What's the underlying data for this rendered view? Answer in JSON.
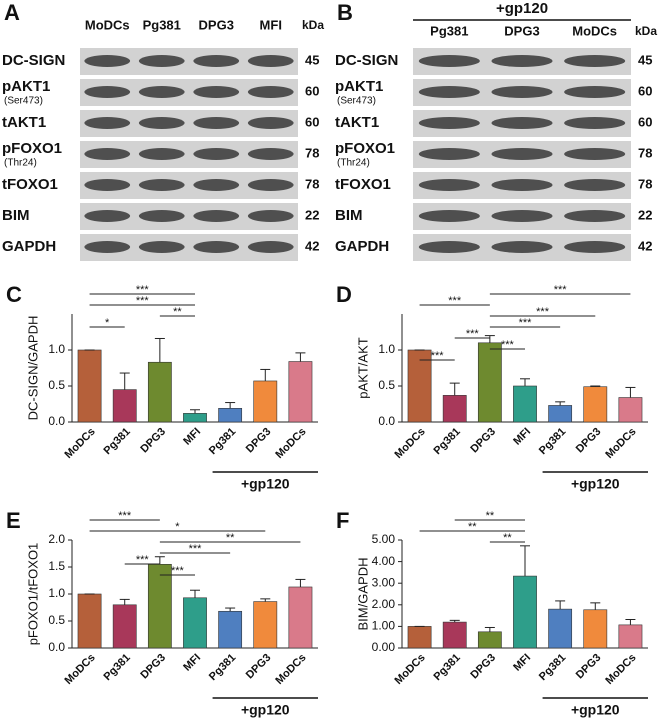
{
  "blots": [
    {
      "panel": "A",
      "lanes": [
        "MoDCs",
        "Pg381",
        "DPG3",
        "MFI"
      ],
      "unit": "kDa",
      "rows": [
        {
          "label": "DC-SIGN",
          "kda": 45
        },
        {
          "label": "pAKT1",
          "site": "(Ser473)",
          "kda": 60
        },
        {
          "label": "tAKT1",
          "kda": 60
        },
        {
          "label": "pFOXO1",
          "site": "(Thr24)",
          "kda": 78
        },
        {
          "label": "tFOXO1",
          "kda": 78
        },
        {
          "label": "BIM",
          "kda": 22
        },
        {
          "label": "GAPDH",
          "kda": 42
        }
      ]
    },
    {
      "panel": "B",
      "treatment": "+gp120",
      "lanes": [
        "Pg381",
        "DPG3",
        "MoDCs"
      ],
      "unit": "kDa",
      "rows": [
        {
          "label": "DC-SIGN",
          "kda": 45
        },
        {
          "label": "pAKT1",
          "site": "(Ser473)",
          "kda": 60
        },
        {
          "label": "tAKT1",
          "kda": 60
        },
        {
          "label": "pFOXO1",
          "site": "(Thr24)",
          "kda": 78
        },
        {
          "label": "tFOXO1",
          "kda": 78
        },
        {
          "label": "BIM",
          "kda": 22
        },
        {
          "label": "GAPDH",
          "kda": 42
        }
      ]
    }
  ],
  "chart_data": [
    {
      "type": "bar",
      "panel": "C",
      "y_label": "DC-SIGN/GAPDH",
      "categories": [
        "MoDCs",
        "Pg381",
        "DPG3",
        "MFI",
        "Pg381",
        "DPG3",
        "MoDCs"
      ],
      "values": [
        1.0,
        0.45,
        0.83,
        0.12,
        0.19,
        0.57,
        0.84
      ],
      "errors": [
        0,
        0.23,
        0.33,
        0.05,
        0.08,
        0.16,
        0.12
      ],
      "colors": [
        "#b5603a",
        "#a8385a",
        "#6e8a2f",
        "#2e9e8a",
        "#4f7fc0",
        "#f08a3c",
        "#d97a8a"
      ],
      "ylim": [
        0,
        1.5
      ],
      "yticks": [
        {
          "value": 0,
          "label": "0.0"
        },
        {
          "value": 0.5,
          "label": "0.5"
        },
        {
          "value": 1,
          "label": "1.0"
        }
      ],
      "significance": [
        {
          "from": 0,
          "to": 3,
          "label": "***"
        },
        {
          "from": 0,
          "to": 3,
          "label": "***"
        },
        {
          "from": 2,
          "to": 3,
          "label": "**"
        },
        {
          "from": 0,
          "to": 1,
          "label": "*"
        }
      ],
      "group_label": "+gp120",
      "group": [
        4,
        6
      ]
    },
    {
      "type": "bar",
      "panel": "D",
      "y_label": "pAKT/AKT",
      "categories": [
        "MoDCs",
        "Pg381",
        "DPG3",
        "MFI",
        "Pg381",
        "DPG3",
        "MoDCs"
      ],
      "values": [
        1.0,
        0.37,
        1.1,
        0.5,
        0.23,
        0.49,
        0.34
      ],
      "errors": [
        0,
        0.17,
        0.1,
        0.1,
        0.05,
        0.01,
        0.14
      ],
      "colors": [
        "#b5603a",
        "#a8385a",
        "#6e8a2f",
        "#2e9e8a",
        "#4f7fc0",
        "#f08a3c",
        "#d97a8a"
      ],
      "ylim": [
        0,
        1.5
      ],
      "yticks": [
        {
          "value": 0,
          "label": "0.0"
        },
        {
          "value": 0.5,
          "label": "0.5"
        },
        {
          "value": 1,
          "label": "1.0"
        }
      ],
      "significance": [
        {
          "from": 2,
          "to": 6,
          "label": "***"
        },
        {
          "from": 0,
          "to": 2,
          "label": "***"
        },
        {
          "from": 2,
          "to": 5,
          "label": "***"
        },
        {
          "from": 2,
          "to": 4,
          "label": "***"
        },
        {
          "from": 1,
          "to": 2,
          "label": "***"
        },
        {
          "from": 2,
          "to": 3,
          "label": "***"
        },
        {
          "from": 0,
          "to": 1,
          "label": "***"
        }
      ],
      "group_label": "+gp120",
      "group": [
        4,
        6
      ]
    },
    {
      "type": "bar",
      "panel": "E",
      "y_label": "pFOXO1/tFOXO1",
      "categories": [
        "MoDCs",
        "Pg381",
        "DPG3",
        "MFI",
        "Pg381",
        "DPG3",
        "MoDCs"
      ],
      "values": [
        1.0,
        0.8,
        1.55,
        0.93,
        0.68,
        0.86,
        1.13
      ],
      "errors": [
        0,
        0.1,
        0.14,
        0.14,
        0.06,
        0.05,
        0.14
      ],
      "colors": [
        "#b5603a",
        "#a8385a",
        "#6e8a2f",
        "#2e9e8a",
        "#4f7fc0",
        "#f08a3c",
        "#d97a8a"
      ],
      "ylim": [
        0,
        2
      ],
      "yticks": [
        {
          "value": 0,
          "label": "0.0"
        },
        {
          "value": 0.5,
          "label": "0.5"
        },
        {
          "value": 1,
          "label": "1.0"
        },
        {
          "value": 1.5,
          "label": "1.5"
        },
        {
          "value": 2,
          "label": "2.0"
        }
      ],
      "significance": [
        {
          "from": 0,
          "to": 2,
          "label": "***"
        },
        {
          "from": 0,
          "to": 5,
          "label": "*"
        },
        {
          "from": 2,
          "to": 6,
          "label": "**"
        },
        {
          "from": 2,
          "to": 4,
          "label": "***"
        },
        {
          "from": 1,
          "to": 2,
          "label": "***"
        },
        {
          "from": 2,
          "to": 3,
          "label": "***"
        }
      ],
      "group_label": "+gp120",
      "group": [
        4,
        6
      ]
    },
    {
      "type": "bar",
      "panel": "F",
      "y_label": "BIM/GAPDH",
      "categories": [
        "MoDCs",
        "Pg381",
        "DPG3",
        "MFI",
        "Pg381",
        "DPG3",
        "MoDCs"
      ],
      "values": [
        1.0,
        1.2,
        0.75,
        3.33,
        1.8,
        1.77,
        1.07
      ],
      "errors": [
        0,
        0.08,
        0.2,
        1.4,
        0.38,
        0.32,
        0.25
      ],
      "colors": [
        "#b5603a",
        "#a8385a",
        "#6e8a2f",
        "#2e9e8a",
        "#4f7fc0",
        "#f08a3c",
        "#d97a8a"
      ],
      "ylim": [
        0,
        5
      ],
      "yticks": [
        {
          "value": 0,
          "label": "0.00"
        },
        {
          "value": 1,
          "label": "1.00"
        },
        {
          "value": 2,
          "label": "2.00"
        },
        {
          "value": 3,
          "label": "3.00"
        },
        {
          "value": 4,
          "label": "4.00"
        },
        {
          "value": 5,
          "label": "5.00"
        }
      ],
      "significance": [
        {
          "from": 1,
          "to": 3,
          "label": "**"
        },
        {
          "from": 0,
          "to": 3,
          "label": "**"
        },
        {
          "from": 2,
          "to": 3,
          "label": "**"
        }
      ],
      "group_label": "+gp120",
      "group": [
        4,
        6
      ]
    }
  ]
}
